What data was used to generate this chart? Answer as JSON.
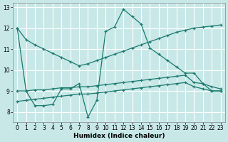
{
  "xlabel": "Humidex (Indice chaleur)",
  "bg_color": "#c8e8e8",
  "grid_color": "#ffffff",
  "line_color": "#1a7a6e",
  "xlim": [
    -0.5,
    23.5
  ],
  "ylim": [
    7.5,
    13.2
  ],
  "xticks": [
    0,
    1,
    2,
    3,
    4,
    5,
    6,
    7,
    8,
    9,
    10,
    11,
    12,
    13,
    14,
    15,
    16,
    17,
    18,
    19,
    20,
    21,
    22,
    23
  ],
  "yticks": [
    8,
    9,
    10,
    11,
    12,
    13
  ],
  "series": [
    {
      "x": [
        0,
        1,
        2,
        3,
        4,
        5,
        6,
        7,
        8,
        9,
        10,
        11,
        12,
        13,
        14,
        15,
        16,
        17,
        18,
        19,
        20,
        21,
        22,
        23
      ],
      "y": [
        12.0,
        11.45,
        11.2,
        11.0,
        10.8,
        10.6,
        10.4,
        10.2,
        10.3,
        10.45,
        10.6,
        10.75,
        10.9,
        11.05,
        11.2,
        11.35,
        11.5,
        11.65,
        11.8,
        11.9,
        12.0,
        12.05,
        12.1,
        12.15
      ]
    },
    {
      "x": [
        0,
        1,
        2,
        3,
        4,
        5,
        6,
        7,
        8,
        9,
        10,
        11,
        12,
        13,
        14,
        15,
        16,
        17,
        18,
        19,
        20,
        21,
        22,
        23
      ],
      "y": [
        9.0,
        9.0,
        9.05,
        9.05,
        9.1,
        9.15,
        9.15,
        9.2,
        9.2,
        9.25,
        9.3,
        9.35,
        9.4,
        9.45,
        9.5,
        9.55,
        9.6,
        9.65,
        9.7,
        9.75,
        9.4,
        9.35,
        9.2,
        9.1
      ]
    },
    {
      "x": [
        0,
        1,
        2,
        3,
        4,
        5,
        6,
        7,
        8,
        9,
        10,
        11,
        12,
        13,
        14,
        15,
        16,
        17,
        18,
        19,
        20,
        21,
        22,
        23
      ],
      "y": [
        8.5,
        8.55,
        8.6,
        8.65,
        8.7,
        8.75,
        8.8,
        8.85,
        8.85,
        8.9,
        8.95,
        9.0,
        9.05,
        9.1,
        9.15,
        9.2,
        9.25,
        9.3,
        9.35,
        9.4,
        9.2,
        9.1,
        9.0,
        9.0
      ]
    },
    {
      "x": [
        0,
        1,
        2,
        3,
        4,
        5,
        6,
        7,
        8,
        9,
        10,
        11,
        12,
        13,
        14,
        15,
        16,
        17,
        18,
        19,
        20,
        21,
        22,
        23
      ],
      "y": [
        12.0,
        9.0,
        8.3,
        8.3,
        8.35,
        9.1,
        9.1,
        9.35,
        7.75,
        8.55,
        11.85,
        12.05,
        12.9,
        12.55,
        12.2,
        11.05,
        10.75,
        10.45,
        10.15,
        9.85,
        9.85,
        9.35,
        9.0,
        9.0
      ]
    }
  ]
}
